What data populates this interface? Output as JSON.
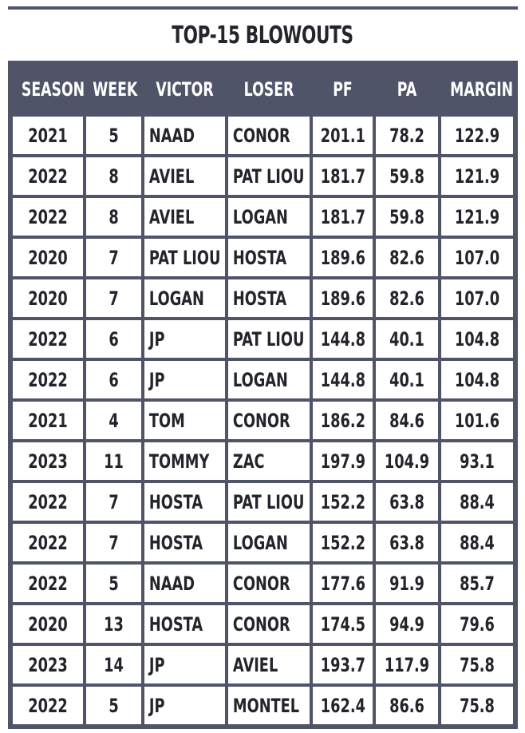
{
  "title": "TOP-15 BLOWOUTS",
  "colors": {
    "header_bg": "#4f5469",
    "header_text": "#ffffff",
    "cell_bg": "#ffffff",
    "cell_text": "#23242c",
    "grid_line": "#4f5469"
  },
  "table": {
    "headers": [
      "SEASON",
      "WEEK",
      "VICTOR",
      "LOSER",
      "PF",
      "PA",
      "MARGIN"
    ],
    "rows": [
      [
        "2021",
        "5",
        "NAAD",
        "CONOR",
        "201.1",
        "78.2",
        "122.9"
      ],
      [
        "2022",
        "8",
        "AVIEL",
        "PAT LIOU",
        "181.7",
        "59.8",
        "121.9"
      ],
      [
        "2022",
        "8",
        "AVIEL",
        "LOGAN",
        "181.7",
        "59.8",
        "121.9"
      ],
      [
        "2020",
        "7",
        "PAT LIOU",
        "HOSTA",
        "189.6",
        "82.6",
        "107.0"
      ],
      [
        "2020",
        "7",
        "LOGAN",
        "HOSTA",
        "189.6",
        "82.6",
        "107.0"
      ],
      [
        "2022",
        "6",
        "JP",
        "PAT LIOU",
        "144.8",
        "40.1",
        "104.8"
      ],
      [
        "2022",
        "6",
        "JP",
        "LOGAN",
        "144.8",
        "40.1",
        "104.8"
      ],
      [
        "2021",
        "4",
        "TOM",
        "CONOR",
        "186.2",
        "84.6",
        "101.6"
      ],
      [
        "2023",
        "11",
        "TOMMY",
        "ZAC",
        "197.9",
        "104.9",
        "93.1"
      ],
      [
        "2022",
        "7",
        "HOSTA",
        "PAT LIOU",
        "152.2",
        "63.8",
        "88.4"
      ],
      [
        "2022",
        "7",
        "HOSTA",
        "LOGAN",
        "152.2",
        "63.8",
        "88.4"
      ],
      [
        "2022",
        "5",
        "NAAD",
        "CONOR",
        "177.6",
        "91.9",
        "85.7"
      ],
      [
        "2020",
        "13",
        "HOSTA",
        "CONOR",
        "174.5",
        "94.9",
        "79.6"
      ],
      [
        "2023",
        "14",
        "JP",
        "AVIEL",
        "193.7",
        "117.9",
        "75.8"
      ],
      [
        "2022",
        "5",
        "JP",
        "MONTEL",
        "162.4",
        "86.6",
        "75.8"
      ]
    ]
  }
}
